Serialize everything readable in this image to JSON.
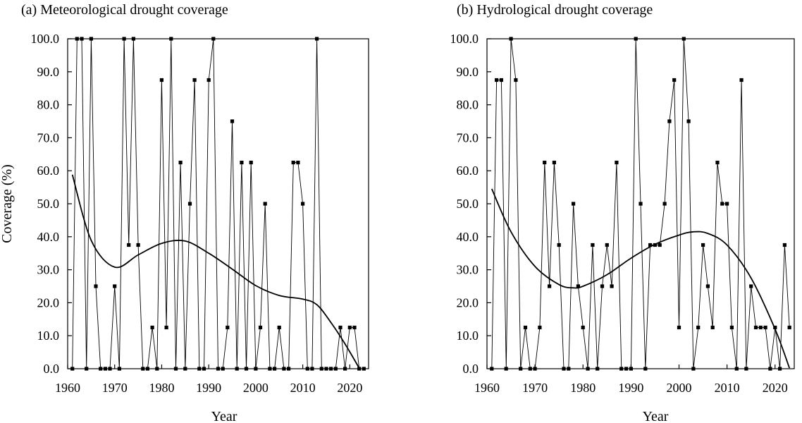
{
  "chart_data": [
    {
      "type": "line",
      "title": "(a) Meteorological drought coverage",
      "xlabel": "Year",
      "ylabel": "Coverage (%)",
      "xlim": [
        1960,
        2024
      ],
      "ylim": [
        0,
        100
      ],
      "xticks": [
        1960,
        1970,
        1980,
        1990,
        2000,
        2010,
        2020
      ],
      "xtick_labels": [
        "1960",
        "1970",
        "1980",
        "1990",
        "2000",
        "2010",
        "2020"
      ],
      "yticks": [
        0,
        10,
        20,
        30,
        40,
        50,
        60,
        70,
        80,
        90,
        100
      ],
      "ytick_labels": [
        "0.0",
        "10.0",
        "20.0",
        "30.0",
        "40.0",
        "50.0",
        "60.0",
        "70.0",
        "80.0",
        "90.0",
        "100.0"
      ],
      "grid": false,
      "series": [
        {
          "kind": "annual-markers",
          "x": [
            1961,
            1962,
            1963,
            1964,
            1965,
            1966,
            1967,
            1968,
            1969,
            1970,
            1971,
            1972,
            1973,
            1974,
            1975,
            1976,
            1977,
            1978,
            1979,
            1980,
            1981,
            1982,
            1983,
            1984,
            1985,
            1986,
            1987,
            1988,
            1989,
            1990,
            1991,
            1992,
            1993,
            1994,
            1995,
            1996,
            1997,
            1998,
            1999,
            2000,
            2001,
            2002,
            2003,
            2004,
            2005,
            2006,
            2007,
            2008,
            2009,
            2010,
            2011,
            2012,
            2013,
            2014,
            2015,
            2016,
            2017,
            2018,
            2019,
            2020,
            2021,
            2022,
            2023
          ],
          "y": [
            0,
            100,
            100,
            0,
            100,
            25,
            0,
            0,
            0,
            25,
            0,
            100,
            37.5,
            100,
            37.5,
            0,
            0,
            12.5,
            0,
            87.5,
            12.5,
            100,
            0,
            62.5,
            0,
            50,
            87.5,
            0,
            0,
            87.5,
            100,
            0,
            0,
            12.5,
            75,
            0,
            62.5,
            0,
            62.5,
            0,
            12.5,
            50,
            0,
            0,
            12.5,
            0,
            0,
            62.5,
            62.5,
            50,
            0,
            0,
            100,
            0,
            0,
            0,
            0,
            12.5,
            0,
            12.5,
            12.5,
            0,
            0
          ]
        },
        {
          "kind": "fitted-curve",
          "x": [
            1961,
            1965,
            1970,
            1975,
            1980,
            1985,
            1990,
            1995,
            2000,
            2005,
            2010,
            2013,
            2016,
            2019,
            2022
          ],
          "y": [
            58.8,
            38.9,
            30.8,
            34.5,
            38.0,
            38.7,
            35.0,
            30.2,
            25.2,
            22.2,
            21.1,
            19.4,
            14.0,
            7.5,
            0.2
          ]
        }
      ]
    },
    {
      "type": "line",
      "title": "(b) Hydrological drought coverage",
      "xlabel": "Year",
      "ylabel": "",
      "xlim": [
        1960,
        2024
      ],
      "ylim": [
        0,
        100
      ],
      "xticks": [
        1960,
        1970,
        1980,
        1990,
        2000,
        2010,
        2020
      ],
      "xtick_labels": [
        "1960",
        "1970",
        "1980",
        "1990",
        "2000",
        "2010",
        "2020"
      ],
      "yticks": [
        0,
        10,
        20,
        30,
        40,
        50,
        60,
        70,
        80,
        90,
        100
      ],
      "ytick_labels": [
        "0.0",
        "10.0",
        "20.0",
        "30.0",
        "40.0",
        "50.0",
        "60.0",
        "70.0",
        "80.0",
        "90.0",
        "100.0"
      ],
      "grid": false,
      "series": [
        {
          "kind": "annual-markers",
          "x": [
            1961,
            1962,
            1963,
            1964,
            1965,
            1966,
            1967,
            1968,
            1969,
            1970,
            1971,
            1972,
            1973,
            1974,
            1975,
            1976,
            1977,
            1978,
            1979,
            1980,
            1981,
            1982,
            1983,
            1984,
            1985,
            1986,
            1987,
            1988,
            1989,
            1990,
            1991,
            1992,
            1993,
            1994,
            1995,
            1996,
            1997,
            1998,
            1999,
            2000,
            2001,
            2002,
            2003,
            2004,
            2005,
            2006,
            2007,
            2008,
            2009,
            2010,
            2011,
            2012,
            2013,
            2014,
            2015,
            2016,
            2017,
            2018,
            2019,
            2020,
            2021,
            2022,
            2023
          ],
          "y": [
            0,
            87.5,
            87.5,
            0,
            100,
            87.5,
            0,
            12.5,
            0,
            0,
            12.5,
            62.5,
            25,
            62.5,
            37.5,
            0,
            0,
            50,
            25,
            12.5,
            0,
            37.5,
            0,
            25,
            37.5,
            25,
            62.5,
            0,
            0,
            0,
            100,
            50,
            0,
            37.5,
            37.5,
            37.5,
            50,
            75,
            87.5,
            12.5,
            100,
            75,
            0,
            12.5,
            37.5,
            25,
            12.5,
            62.5,
            50,
            50,
            12.5,
            0,
            87.5,
            0,
            25,
            12.5,
            12.5,
            12.5,
            0,
            12.5,
            0,
            37.5,
            12.5
          ]
        },
        {
          "kind": "fitted-curve",
          "x": [
            1961,
            1965,
            1970,
            1975,
            1978,
            1980,
            1985,
            1990,
            1995,
            2000,
            2003,
            2006,
            2010,
            2015,
            2020,
            2023
          ],
          "y": [
            54.5,
            41.5,
            31.0,
            25.5,
            24.5,
            25.0,
            28.5,
            33.5,
            37.7,
            40.5,
            41.5,
            41.0,
            37.5,
            27.5,
            12.0,
            0.2
          ]
        }
      ]
    }
  ]
}
